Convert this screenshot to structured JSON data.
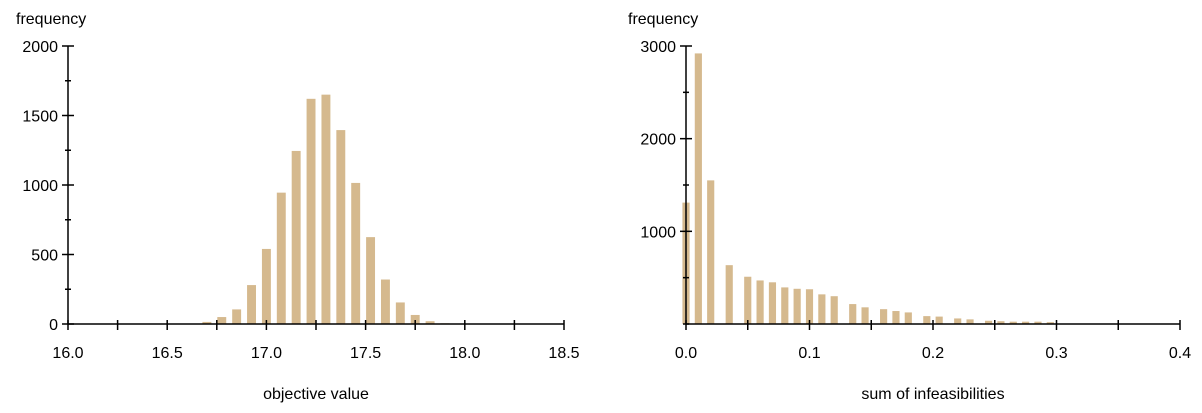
{
  "colors": {
    "bar": "#d5b98e",
    "axis": "#000000",
    "background": "#ffffff"
  },
  "chart_data": [
    {
      "type": "bar",
      "title": "",
      "ylabel": "frequency",
      "xlabel": "objective value",
      "xlim": [
        16.0,
        18.5
      ],
      "ylim": [
        0,
        2000
      ],
      "x_ticks": [
        16.0,
        16.25,
        16.5,
        16.75,
        17.0,
        17.25,
        17.5,
        17.75,
        18.0,
        18.25,
        18.5
      ],
      "x_tick_labels": [
        {
          "value": 16.0,
          "label": "16.0"
        },
        {
          "value": 16.5,
          "label": "16.5"
        },
        {
          "value": 17.0,
          "label": "17.0"
        },
        {
          "value": 17.5,
          "label": "17.5"
        },
        {
          "value": 18.0,
          "label": "18.0"
        },
        {
          "value": 18.5,
          "label": "18.5"
        }
      ],
      "y_ticks": [
        0,
        250,
        500,
        750,
        1000,
        1250,
        1500,
        1750,
        2000
      ],
      "y_tick_labels": [
        {
          "value": 0,
          "label": "0"
        },
        {
          "value": 500,
          "label": "500"
        },
        {
          "value": 1000,
          "label": "1000"
        },
        {
          "value": 1500,
          "label": "1500"
        },
        {
          "value": 2000,
          "label": "2000"
        }
      ],
      "bar_width": 0.045,
      "x": [
        16.7,
        16.775,
        16.85,
        16.925,
        17.0,
        17.075,
        17.15,
        17.225,
        17.3,
        17.375,
        17.45,
        17.525,
        17.6,
        17.675,
        17.75,
        17.825,
        17.9
      ],
      "values": [
        15,
        50,
        105,
        280,
        540,
        945,
        1245,
        1620,
        1650,
        1395,
        1015,
        625,
        320,
        155,
        65,
        20,
        5
      ]
    },
    {
      "type": "bar",
      "title": "",
      "ylabel": "frequency",
      "xlabel": "sum of infeasibilities",
      "xlim": [
        0.0,
        0.4
      ],
      "ylim": [
        0,
        3000
      ],
      "x_ticks": [
        0.0,
        0.05,
        0.1,
        0.15,
        0.2,
        0.25,
        0.3,
        0.35,
        0.4
      ],
      "x_tick_labels": [
        {
          "value": 0.0,
          "label": "0.0"
        },
        {
          "value": 0.1,
          "label": "0.1"
        },
        {
          "value": 0.2,
          "label": "0.2"
        },
        {
          "value": 0.3,
          "label": "0.3"
        },
        {
          "value": 0.4,
          "label": "0.4"
        }
      ],
      "y_ticks": [
        0,
        500,
        1000,
        1500,
        2000,
        2500,
        3000
      ],
      "y_tick_labels": [
        {
          "value": 1000,
          "label": "1000"
        },
        {
          "value": 2000,
          "label": "2000"
        },
        {
          "value": 3000,
          "label": "3000"
        }
      ],
      "bar_width": 0.0058,
      "x": [
        0.0,
        0.01,
        0.02,
        0.035,
        0.05,
        0.06,
        0.07,
        0.08,
        0.09,
        0.1,
        0.11,
        0.12,
        0.135,
        0.145,
        0.16,
        0.17,
        0.18,
        0.195,
        0.205,
        0.22,
        0.23,
        0.245,
        0.255,
        0.265,
        0.275,
        0.285,
        0.295
      ],
      "values": [
        1310,
        2920,
        1550,
        635,
        510,
        470,
        450,
        395,
        380,
        375,
        320,
        300,
        215,
        180,
        160,
        140,
        125,
        85,
        80,
        60,
        50,
        35,
        30,
        25,
        25,
        25,
        20
      ]
    }
  ]
}
